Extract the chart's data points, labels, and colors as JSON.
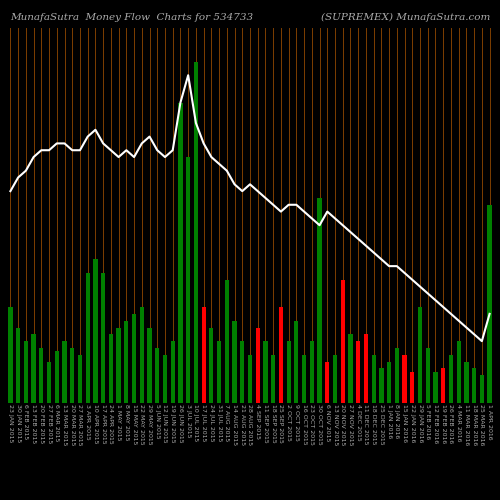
{
  "title_left": "MunafaSutra  Money Flow  Charts for 534733",
  "title_right": "(SUPREMEX) MunafaSutra.com",
  "background_color": "#000000",
  "grid_line_color": "#8B4500",
  "bar_colors": [
    "green",
    "green",
    "green",
    "green",
    "green",
    "green",
    "green",
    "green",
    "green",
    "green",
    "green",
    "green",
    "green",
    "green",
    "green",
    "green",
    "green",
    "green",
    "green",
    "green",
    "green",
    "green",
    "green",
    "green",
    "green",
    "red",
    "green",
    "green",
    "green",
    "green",
    "green",
    "green",
    "red",
    "green",
    "green",
    "red",
    "green",
    "green",
    "green",
    "green",
    "green",
    "red",
    "green",
    "red",
    "green",
    "red",
    "red",
    "green",
    "green",
    "green",
    "green",
    "red",
    "red",
    "green",
    "green",
    "green",
    "red",
    "green",
    "green",
    "green",
    "green",
    "green",
    "green"
  ],
  "bar_values": [
    28,
    22,
    18,
    20,
    16,
    12,
    15,
    18,
    16,
    14,
    38,
    42,
    38,
    20,
    22,
    24,
    26,
    28,
    22,
    16,
    14,
    18,
    88,
    72,
    100,
    28,
    22,
    18,
    36,
    24,
    18,
    14,
    22,
    18,
    14,
    28,
    18,
    24,
    14,
    18,
    60,
    12,
    14,
    36,
    20,
    18,
    20,
    14,
    10,
    12,
    16,
    14,
    9,
    28,
    16,
    9,
    10,
    14,
    18,
    12,
    10,
    8,
    58
  ],
  "line_values": [
    62,
    66,
    68,
    72,
    74,
    74,
    76,
    76,
    74,
    74,
    78,
    80,
    76,
    74,
    72,
    74,
    72,
    76,
    78,
    74,
    72,
    74,
    88,
    96,
    82,
    76,
    72,
    70,
    68,
    64,
    62,
    64,
    62,
    60,
    58,
    56,
    58,
    58,
    56,
    54,
    52,
    56,
    54,
    52,
    50,
    48,
    46,
    44,
    42,
    40,
    40,
    38,
    36,
    34,
    32,
    30,
    28,
    26,
    24,
    22,
    20,
    18,
    26
  ],
  "x_labels": [
    "23 JAN 2015",
    "30 JAN 2015",
    "6 FEB 2015",
    "13 FEB 2015",
    "20 FEB 2015",
    "27 FEB 2015",
    "6 MAR 2015",
    "13 MAR 2015",
    "20 MAR 2015",
    "27 MAR 2015",
    "3 APR 2015",
    "10 APR 2015",
    "17 APR 2015",
    "24 APR 2015",
    "1 MAY 2015",
    "8 MAY 2015",
    "15 MAY 2015",
    "22 MAY 2015",
    "29 MAY 2015",
    "5 JUN 2015",
    "12 JUN 2015",
    "19 JUN 2015",
    "26 JUN 2015",
    "3 JUL 2015",
    "10 JUL 2015",
    "17 JUL 2015",
    "24 JUL 2015",
    "31 JUL 2015",
    "7 AUG 2015",
    "14 AUG 2015",
    "21 AUG 2015",
    "28 AUG 2015",
    "4 SEP 2015",
    "11 SEP 2015",
    "18 SEP 2015",
    "25 SEP 2015",
    "2 OCT 2015",
    "9 OCT 2015",
    "16 OCT 2015",
    "23 OCT 2015",
    "30 OCT 2015",
    "6 NOV 2015",
    "13 NOV 2015",
    "20 NOV 2015",
    "27 NOV 2015",
    "4 DEC 2015",
    "11 DEC 2015",
    "18 DEC 2015",
    "25 DEC 2015",
    "1 JAN 2016",
    "8 JAN 2016",
    "15 JAN 2016",
    "22 JAN 2016",
    "29 JAN 2016",
    "5 FEB 2016",
    "12 FEB 2016",
    "19 FEB 2016",
    "26 FEB 2016",
    "4 MAR 2016",
    "11 MAR 2016",
    "18 MAR 2016",
    "25 MAR 2016",
    "1 APR 2016"
  ],
  "bar_width": 0.55,
  "line_color": "#ffffff",
  "line_width": 1.5,
  "tick_label_color": "#aaaaaa",
  "tick_label_size": 4.5,
  "title_color": "#aaaaaa",
  "title_size": 7.5
}
